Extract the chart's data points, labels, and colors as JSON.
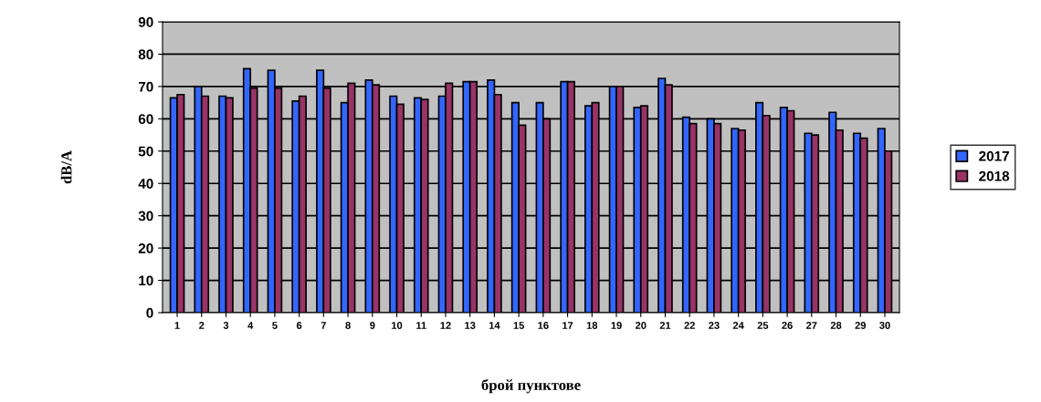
{
  "chart_data": {
    "type": "bar",
    "xlabel": "брой пунктове",
    "ylabel": "dB/A",
    "categories": [
      "1",
      "2",
      "3",
      "4",
      "5",
      "6",
      "7",
      "8",
      "9",
      "10",
      "11",
      "12",
      "13",
      "14",
      "15",
      "16",
      "17",
      "18",
      "19",
      "20",
      "21",
      "22",
      "23",
      "24",
      "25",
      "26",
      "27",
      "28",
      "29",
      "30"
    ],
    "series": [
      {
        "name": "2017",
        "color": "#3366ff",
        "values": [
          66.5,
          70,
          67,
          75.5,
          75,
          65.5,
          75,
          65,
          72,
          67,
          66.5,
          67,
          71.5,
          72,
          65,
          65,
          71.5,
          64,
          70,
          63.5,
          72.5,
          60.5,
          60,
          57,
          65,
          63.5,
          55.5,
          62,
          55.5,
          57
        ]
      },
      {
        "name": "2018",
        "color": "#993366",
        "values": [
          67.5,
          67,
          66.5,
          69.5,
          69.5,
          67,
          69.5,
          71,
          70.5,
          64.5,
          66,
          71,
          71.5,
          67.5,
          58,
          60,
          71.5,
          65,
          70,
          64,
          70.5,
          58.5,
          58.5,
          56.5,
          61,
          62.5,
          55,
          56.5,
          54,
          50
        ]
      }
    ],
    "ylim": [
      0,
      90
    ],
    "yticks": [
      0,
      10,
      20,
      30,
      40,
      50,
      60,
      70,
      80,
      90
    ],
    "grid": "y",
    "legend": "right"
  }
}
